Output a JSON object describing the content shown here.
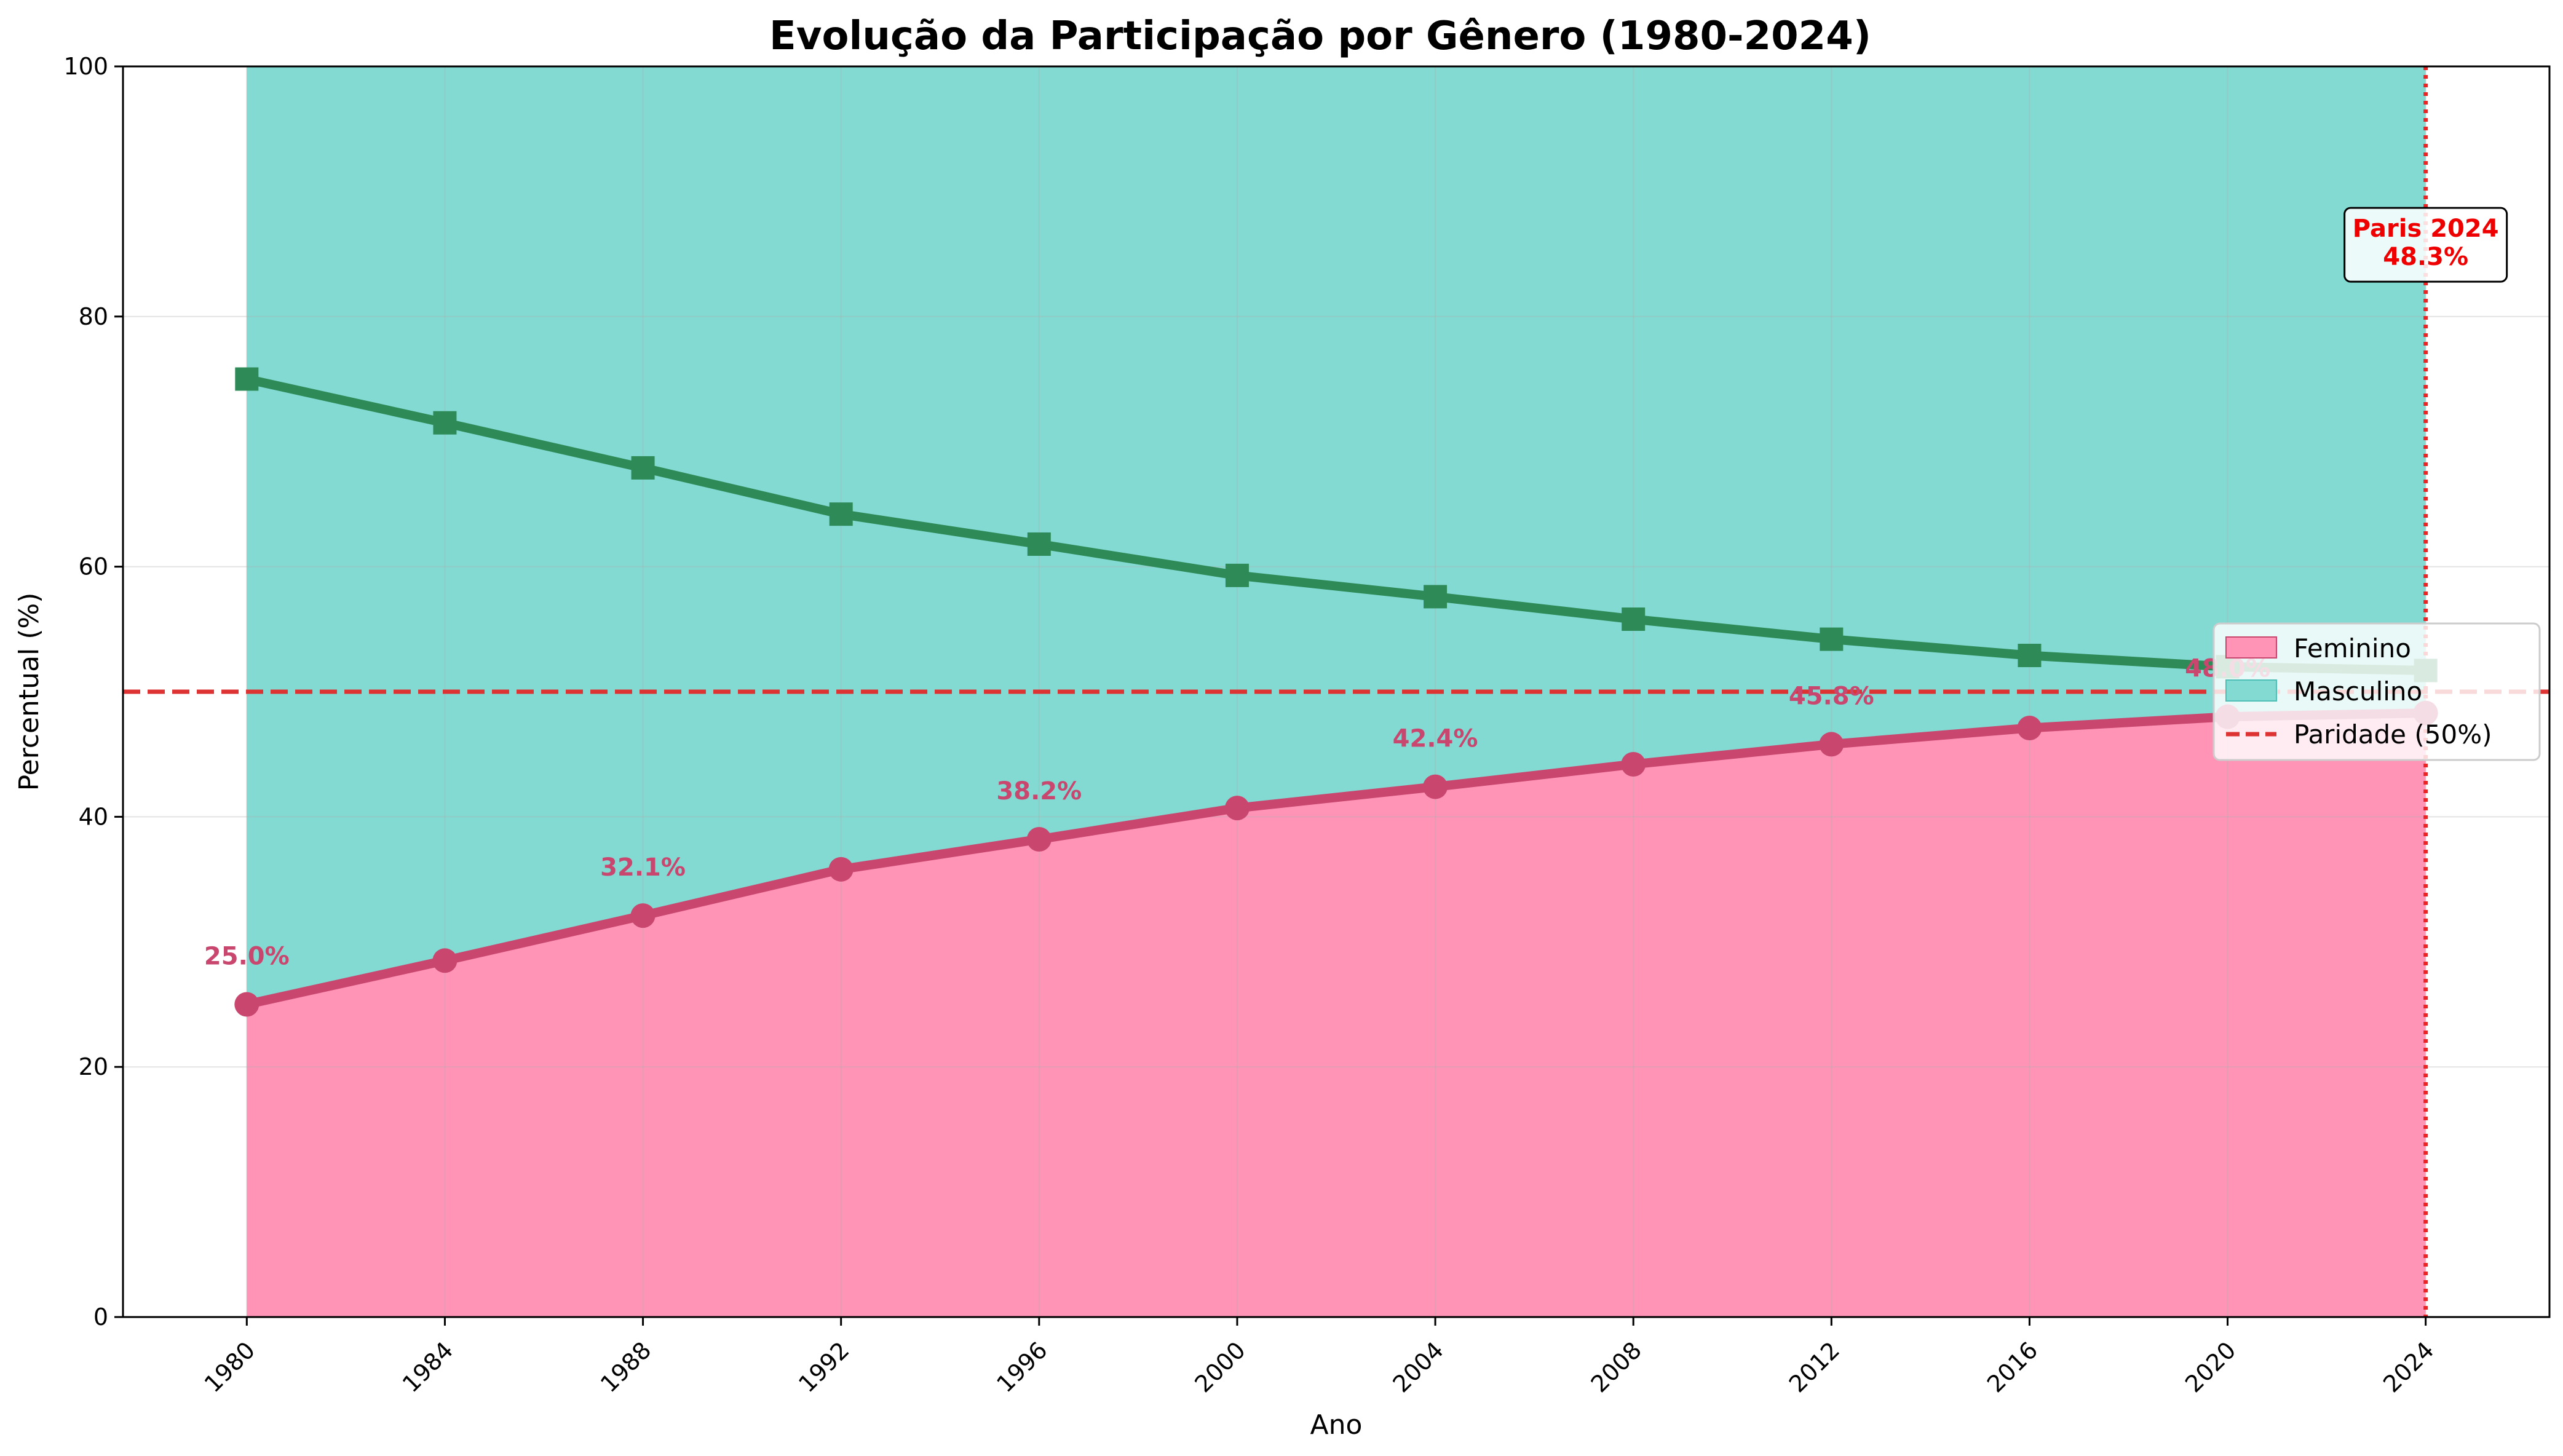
{
  "chart_data": {
    "type": "area",
    "title": "Evolução da Participação por Gênero (1980-2024)",
    "xlabel": "Ano",
    "ylabel": "Percentual (%)",
    "xlim": [
      1977.5,
      2026.5
    ],
    "ylim": [
      0,
      100
    ],
    "x_ticks": [
      1980,
      1984,
      1988,
      1992,
      1996,
      2000,
      2004,
      2008,
      2012,
      2016,
      2020,
      2024
    ],
    "y_ticks": [
      0,
      20,
      40,
      60,
      80,
      100
    ],
    "grid": true,
    "legend_position": "center-right",
    "x": [
      1980,
      1984,
      1988,
      1992,
      1996,
      2000,
      2004,
      2008,
      2012,
      2016,
      2020,
      2024
    ],
    "series": [
      {
        "name": "Feminino",
        "kind": "area",
        "color": "#ff94b7",
        "line_color": "#c9466f",
        "marker": "circle",
        "values": [
          25.0,
          28.5,
          32.1,
          35.8,
          38.2,
          40.7,
          42.4,
          44.2,
          45.8,
          47.1,
          48.0,
          48.3
        ]
      },
      {
        "name": "Masculino",
        "kind": "area",
        "color": "#82dad3",
        "line_color": "#2e8b57",
        "marker": "square",
        "values": [
          75.0,
          71.5,
          67.9,
          64.2,
          61.8,
          59.3,
          57.6,
          55.8,
          54.2,
          52.9,
          52.0,
          51.7
        ]
      }
    ],
    "reference_line": {
      "label": "Paridade (50%)",
      "y": 50,
      "color": "#dd3333",
      "style": "dashed"
    },
    "vertical_marker": {
      "x": 2024,
      "color": "#ee2222",
      "style": "dotted"
    },
    "data_labels": [
      {
        "x": 1980,
        "text": "25.0%",
        "value": 25.0
      },
      {
        "x": 1988,
        "text": "32.1%",
        "value": 32.1
      },
      {
        "x": 1996,
        "text": "38.2%",
        "value": 38.2
      },
      {
        "x": 2004,
        "text": "42.4%",
        "value": 42.4
      },
      {
        "x": 2012,
        "text": "45.8%",
        "value": 45.8
      },
      {
        "x": 2020,
        "text": "48.0%",
        "value": 48.0
      }
    ],
    "annotation": {
      "lines": [
        "Paris 2024",
        "48.3%"
      ],
      "x": 2024,
      "y": 85,
      "color": "#ee0000"
    }
  }
}
